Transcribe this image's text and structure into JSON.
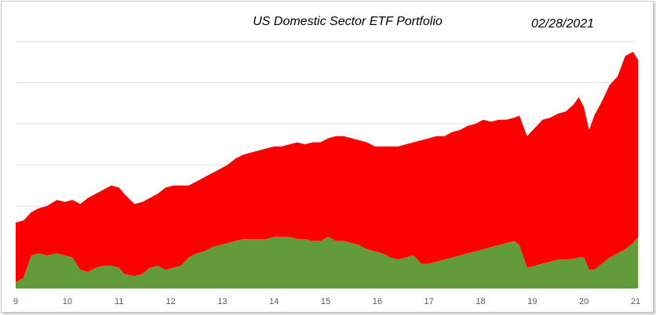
{
  "chart_data": {
    "type": "area",
    "stacked": true,
    "title": "US Domestic Sector ETF Portfolio",
    "date_label": "02/28/2021",
    "xlabel": "",
    "ylabel": "",
    "x_ticks": [
      "9",
      "10",
      "11",
      "12",
      "13",
      "14",
      "15",
      "16",
      "17",
      "18",
      "19",
      "20",
      "21"
    ],
    "xlim": [
      9,
      21
    ],
    "ylim": [
      0,
      6
    ],
    "grid": true,
    "legend": "none",
    "colors": {
      "top": "#ff0000",
      "bottom": "#639a3a",
      "grid": "#e0e0e0"
    },
    "x": [
      9.0,
      9.15,
      9.3,
      9.45,
      9.6,
      9.8,
      9.95,
      10.1,
      10.25,
      10.4,
      10.55,
      10.7,
      10.85,
      11.0,
      11.1,
      11.3,
      11.45,
      11.6,
      11.75,
      11.9,
      12.05,
      12.2,
      12.35,
      12.5,
      12.65,
      12.8,
      12.95,
      13.1,
      13.25,
      13.4,
      13.55,
      13.7,
      13.85,
      14.0,
      14.15,
      14.3,
      14.45,
      14.6,
      14.75,
      14.9,
      15.05,
      15.2,
      15.35,
      15.5,
      15.65,
      15.8,
      15.95,
      16.1,
      16.25,
      16.4,
      16.55,
      16.7,
      16.85,
      17.0,
      17.15,
      17.3,
      17.45,
      17.6,
      17.75,
      17.9,
      18.05,
      18.2,
      18.35,
      18.5,
      18.65,
      18.75,
      18.9,
      19.05,
      19.2,
      19.35,
      19.5,
      19.65,
      19.8,
      19.9,
      20.0,
      20.1,
      20.2,
      20.35,
      20.5,
      20.65,
      20.8,
      20.95,
      21.05
    ],
    "series": [
      {
        "values": [
          0.15,
          0.25,
          0.8,
          0.85,
          0.8,
          0.85,
          0.8,
          0.75,
          0.45,
          0.4,
          0.5,
          0.55,
          0.55,
          0.5,
          0.35,
          0.3,
          0.35,
          0.5,
          0.55,
          0.45,
          0.5,
          0.55,
          0.75,
          0.85,
          0.9,
          1.0,
          1.05,
          1.1,
          1.15,
          1.2,
          1.2,
          1.2,
          1.2,
          1.25,
          1.25,
          1.25,
          1.2,
          1.2,
          1.15,
          1.15,
          1.25,
          1.15,
          1.15,
          1.1,
          1.05,
          0.95,
          0.9,
          0.85,
          0.75,
          0.7,
          0.75,
          0.8,
          0.6,
          0.6,
          0.65,
          0.7,
          0.75,
          0.8,
          0.85,
          0.9,
          0.95,
          1.0,
          1.05,
          1.1,
          1.15,
          1.05,
          0.5,
          0.55,
          0.6,
          0.65,
          0.7,
          0.7,
          0.72,
          0.75,
          0.75,
          0.45,
          0.45,
          0.6,
          0.75,
          0.85,
          0.95,
          1.1,
          1.25
        ]
      },
      {
        "values": [
          1.45,
          1.4,
          1.05,
          1.1,
          1.2,
          1.3,
          1.3,
          1.4,
          1.6,
          1.8,
          1.8,
          1.85,
          1.95,
          1.95,
          1.95,
          1.75,
          1.75,
          1.7,
          1.75,
          2.0,
          2.0,
          1.95,
          1.75,
          1.75,
          1.8,
          1.8,
          1.85,
          1.9,
          2.0,
          2.05,
          2.1,
          2.15,
          2.2,
          2.2,
          2.2,
          2.25,
          2.35,
          2.3,
          2.4,
          2.4,
          2.4,
          2.55,
          2.55,
          2.55,
          2.55,
          2.6,
          2.55,
          2.6,
          2.7,
          2.75,
          2.75,
          2.75,
          3.0,
          3.05,
          3.05,
          3.0,
          3.05,
          3.05,
          3.1,
          3.1,
          3.15,
          3.05,
          3.05,
          3.0,
          3.0,
          3.15,
          3.2,
          3.35,
          3.5,
          3.5,
          3.55,
          3.6,
          3.75,
          3.9,
          3.65,
          3.4,
          3.75,
          3.95,
          4.2,
          4.3,
          4.7,
          4.65,
          4.3
        ]
      }
    ]
  }
}
